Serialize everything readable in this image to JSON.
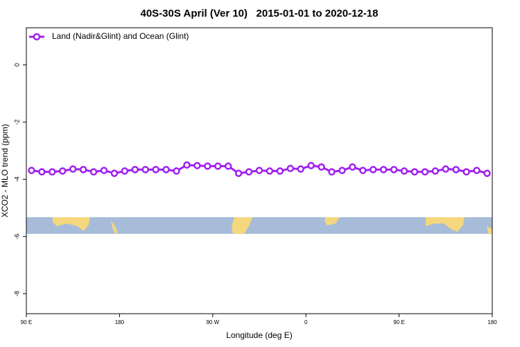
{
  "chart_data": {
    "type": "line",
    "title": "40S-30S April (Ver 10)   2015-01-01 to 2020-12-18",
    "xlabel": "Longitude (deg E)",
    "ylabel": "XCO2 - MLO trend (ppm)",
    "x": [
      95,
      105,
      115,
      125,
      135,
      145,
      155,
      165,
      175,
      185,
      195,
      205,
      215,
      225,
      235,
      245,
      255,
      265,
      275,
      285,
      295,
      305,
      315,
      325,
      335,
      345,
      355,
      365,
      375,
      385,
      395,
      405,
      415,
      425,
      435,
      445,
      455,
      465,
      475,
      485,
      495,
      505,
      515,
      525,
      535
    ],
    "series": [
      {
        "name": "Land (Nadir&Glint) and Ocean (Glint)",
        "color": "#a020f0",
        "values": [
          -3.69,
          -3.74,
          -3.74,
          -3.71,
          -3.64,
          -3.66,
          -3.74,
          -3.69,
          -3.79,
          -3.71,
          -3.66,
          -3.66,
          -3.66,
          -3.66,
          -3.71,
          -3.5,
          -3.52,
          -3.54,
          -3.54,
          -3.54,
          -3.79,
          -3.74,
          -3.69,
          -3.71,
          -3.71,
          -3.62,
          -3.64,
          -3.52,
          -3.57,
          -3.74,
          -3.69,
          -3.57,
          -3.69,
          -3.66,
          -3.66,
          -3.66,
          -3.71,
          -3.74,
          -3.74,
          -3.71,
          -3.64,
          -3.66,
          -3.74,
          -3.69,
          -3.79
        ]
      }
    ],
    "xlim": [
      90,
      540
    ],
    "xticks": [
      {
        "value": 90,
        "label": "90 E"
      },
      {
        "value": 180,
        "label": "180"
      },
      {
        "value": 270,
        "label": "90 W"
      },
      {
        "value": 360,
        "label": "0"
      },
      {
        "value": 450,
        "label": "90 E"
      },
      {
        "value": 540,
        "label": "180"
      }
    ],
    "ylim": [
      -8.7,
      1.3
    ],
    "yticks": [
      0,
      -2,
      -4,
      -6,
      -8
    ],
    "legend": "top-left"
  }
}
